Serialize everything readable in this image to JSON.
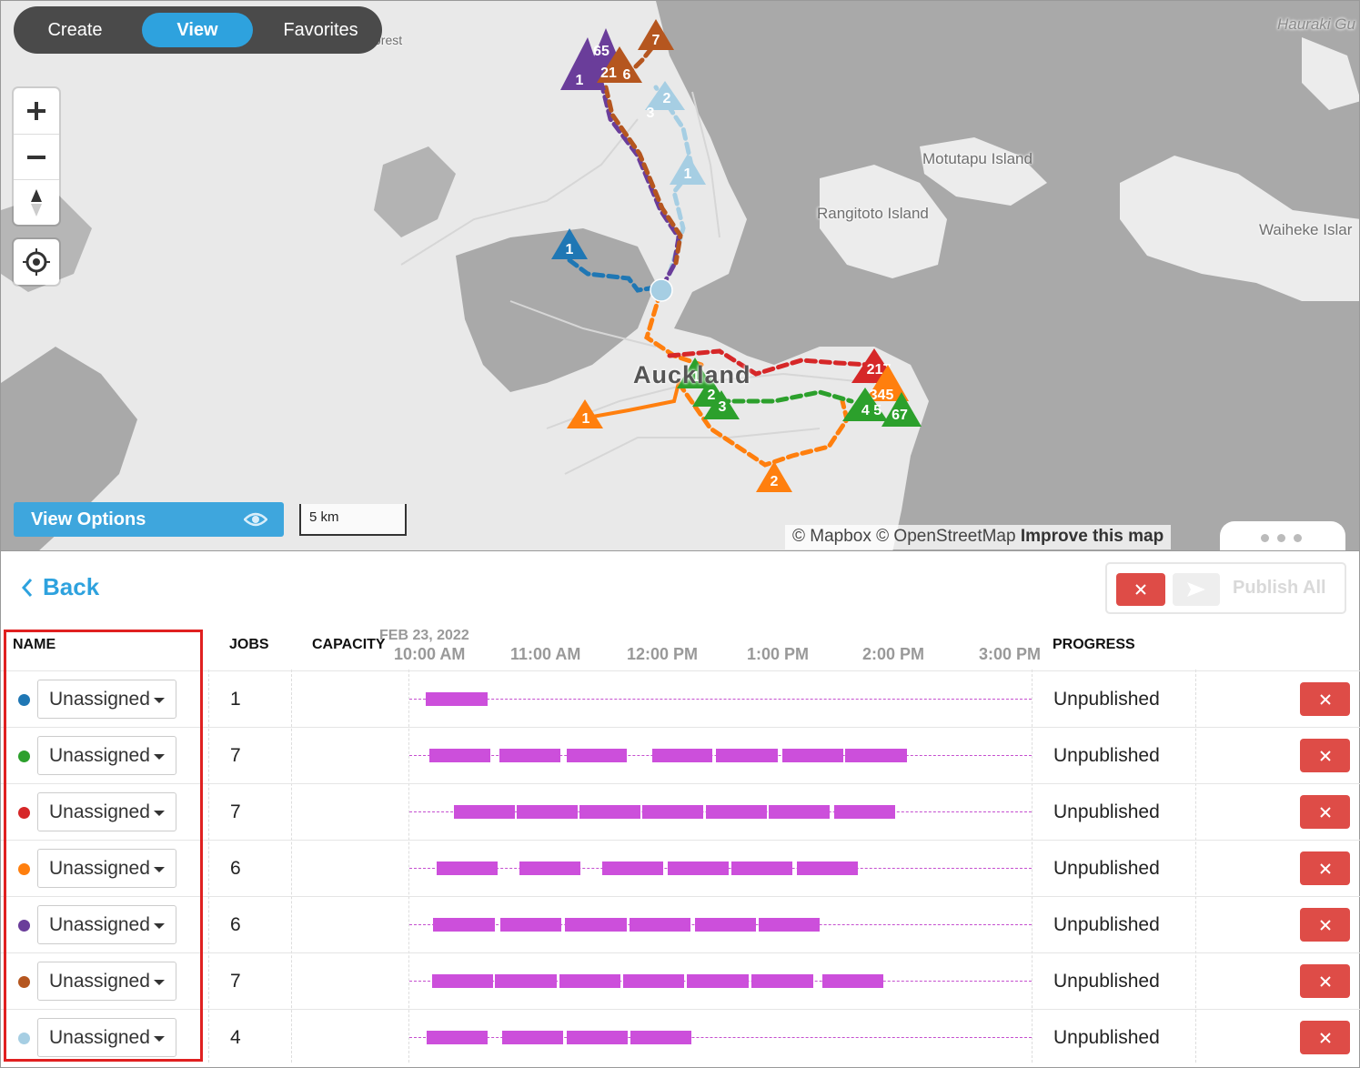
{
  "map": {
    "labels": {
      "forest": "orest",
      "hauraki": "Hauraki Gu",
      "motutapu": "Motutapu Island",
      "rangitoto": "Rangitoto Island",
      "waiheke": "Waiheke Islar",
      "auckland": "Auckland"
    },
    "mode_switch": {
      "create": "Create",
      "view": "View",
      "favorites": "Favorites"
    },
    "view_options_label": "View Options",
    "scale_label": "5 km",
    "attribution": {
      "mapbox": "© Mapbox",
      "osm": "© OpenStreetMap",
      "improve": "Improve this map"
    },
    "route_colors": {
      "blue": "#1f77b4",
      "green": "#2ca02c",
      "red": "#d62728",
      "orange": "#ff7f0e",
      "purple": "#6a3d9a",
      "brown": "#b5561f",
      "lightblue": "#a6cee3"
    }
  },
  "panel": {
    "back_label": "Back",
    "publish_all_label": "Publish All",
    "columns": {
      "name": "NAME",
      "jobs": "JOBS",
      "capacity": "CAPACITY",
      "progress": "PROGRESS"
    },
    "timeline": {
      "date": "FEB 23, 2022",
      "hours": [
        "10:00 AM",
        "11:00 AM",
        "12:00 PM",
        "1:00 PM",
        "2:00 PM",
        "3:00 PM"
      ]
    },
    "routes": [
      {
        "color": "#1f77b4",
        "driver": "Unassigned",
        "jobs": "1",
        "progress": "Unpublished"
      },
      {
        "color": "#2ca02c",
        "driver": "Unassigned",
        "jobs": "7",
        "progress": "Unpublished"
      },
      {
        "color": "#d62728",
        "driver": "Unassigned",
        "jobs": "7",
        "progress": "Unpublished"
      },
      {
        "color": "#ff7f0e",
        "driver": "Unassigned",
        "jobs": "6",
        "progress": "Unpublished"
      },
      {
        "color": "#6a3d9a",
        "driver": "Unassigned",
        "jobs": "6",
        "progress": "Unpublished"
      },
      {
        "color": "#b5561f",
        "driver": "Unassigned",
        "jobs": "7",
        "progress": "Unpublished"
      },
      {
        "color": "#a6cee3",
        "driver": "Unassigned",
        "jobs": "4",
        "progress": "Unpublished"
      }
    ]
  }
}
